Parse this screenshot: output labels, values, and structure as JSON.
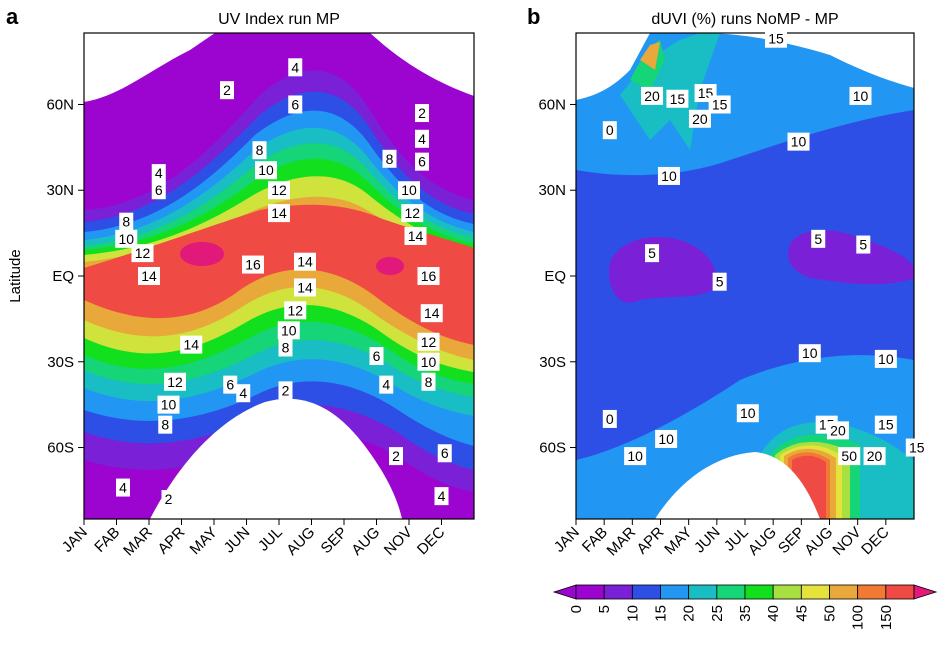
{
  "chart_data": [
    {
      "panel": "a",
      "type": "heatmap",
      "title": "UV Index run MP",
      "ylabel": "Latitude",
      "xlabel": "",
      "x_ticks": [
        "JAN",
        "FAB",
        "MAR",
        "APR",
        "MAY",
        "JUN",
        "JUL",
        "AUG",
        "SEP",
        "AUG",
        "NOV",
        "DEC"
      ],
      "y_ticks": [
        "60N",
        "30N",
        "EQ",
        "30S",
        "60S"
      ],
      "y_tick_values": [
        60,
        30,
        0,
        -30,
        -60
      ],
      "ylim": [
        -85,
        85
      ],
      "levels": [
        0,
        2,
        4,
        6,
        8,
        10,
        12,
        14,
        16,
        18
      ],
      "colors": [
        "#9b05cf",
        "#7a20d6",
        "#2e4fe6",
        "#2196f3",
        "#19bdc4",
        "#16d478",
        "#12e01e",
        "#cfe33c",
        "#e8a93a",
        "#f04a44"
      ],
      "contour_labels": [
        {
          "text": "2",
          "month": 4.4,
          "lat": 65
        },
        {
          "text": "4",
          "month": 6.5,
          "lat": 73
        },
        {
          "text": "6",
          "month": 6.5,
          "lat": 60
        },
        {
          "text": "2",
          "month": 10.4,
          "lat": 57
        },
        {
          "text": "4",
          "month": 10.4,
          "lat": 48
        },
        {
          "text": "6",
          "month": 10.4,
          "lat": 40
        },
        {
          "text": "8",
          "month": 9.4,
          "lat": 41
        },
        {
          "text": "8",
          "month": 5.4,
          "lat": 44
        },
        {
          "text": "10",
          "month": 5.6,
          "lat": 37
        },
        {
          "text": "12",
          "month": 6.0,
          "lat": 30
        },
        {
          "text": "14",
          "month": 6.0,
          "lat": 22
        },
        {
          "text": "10",
          "month": 10.0,
          "lat": 30
        },
        {
          "text": "12",
          "month": 10.1,
          "lat": 22
        },
        {
          "text": "14",
          "month": 10.2,
          "lat": 14
        },
        {
          "text": "4",
          "month": 2.3,
          "lat": 36
        },
        {
          "text": "6",
          "month": 2.3,
          "lat": 30
        },
        {
          "text": "8",
          "month": 1.3,
          "lat": 19
        },
        {
          "text": "10",
          "month": 1.3,
          "lat": 13
        },
        {
          "text": "12",
          "month": 1.8,
          "lat": 8
        },
        {
          "text": "14",
          "month": 2.0,
          "lat": 0
        },
        {
          "text": "16",
          "month": 5.2,
          "lat": 4
        },
        {
          "text": "14",
          "month": 6.8,
          "lat": 5
        },
        {
          "text": "16",
          "month": 10.6,
          "lat": 0
        },
        {
          "text": "14",
          "month": 6.8,
          "lat": -4
        },
        {
          "text": "12",
          "month": 6.5,
          "lat": -12
        },
        {
          "text": "10",
          "month": 6.3,
          "lat": -19
        },
        {
          "text": "8",
          "month": 6.2,
          "lat": -25
        },
        {
          "text": "14",
          "month": 10.7,
          "lat": -13
        },
        {
          "text": "12",
          "month": 10.6,
          "lat": -23
        },
        {
          "text": "10",
          "month": 10.6,
          "lat": -30
        },
        {
          "text": "8",
          "month": 10.6,
          "lat": -37
        },
        {
          "text": "6",
          "month": 9.0,
          "lat": -28
        },
        {
          "text": "4",
          "month": 9.3,
          "lat": -38
        },
        {
          "text": "14",
          "month": 3.3,
          "lat": -24
        },
        {
          "text": "12",
          "month": 2.8,
          "lat": -37
        },
        {
          "text": "10",
          "month": 2.6,
          "lat": -45
        },
        {
          "text": "8",
          "month": 2.5,
          "lat": -52
        },
        {
          "text": "6",
          "month": 4.5,
          "lat": -38
        },
        {
          "text": "4",
          "month": 4.9,
          "lat": -41
        },
        {
          "text": "2",
          "month": 6.2,
          "lat": -40
        },
        {
          "text": "2",
          "month": 9.6,
          "lat": -63
        },
        {
          "text": "6",
          "month": 11.1,
          "lat": -62
        },
        {
          "text": "4",
          "month": 1.2,
          "lat": -74
        },
        {
          "text": "2",
          "month": 2.6,
          "lat": -78
        },
        {
          "text": "4",
          "month": 11.0,
          "lat": -77
        }
      ]
    },
    {
      "panel": "b",
      "type": "heatmap",
      "title": "dUVI (%) runs NoMP - MP",
      "ylabel": "",
      "xlabel": "",
      "x_ticks": [
        "JAN",
        "FAB",
        "MAR",
        "APR",
        "MAY",
        "JUN",
        "JUL",
        "AUG",
        "SEP",
        "AUG",
        "NOV",
        "DEC"
      ],
      "y_ticks": [
        "60N",
        "30N",
        "EQ",
        "30S",
        "60S"
      ],
      "y_tick_values": [
        60,
        30,
        0,
        -30,
        -60
      ],
      "ylim": [
        -85,
        85
      ],
      "levels": [
        0,
        5,
        10,
        15,
        20,
        25,
        35,
        40,
        45,
        50,
        100,
        150
      ],
      "colorbar_labels": [
        "0",
        "5",
        "10",
        "15",
        "20",
        "25",
        "35",
        "40",
        "45",
        "50",
        "100",
        "150"
      ],
      "colors": [
        "#9b05cf",
        "#7a20d6",
        "#2e4fe6",
        "#2196f3",
        "#19bdc4",
        "#16d478",
        "#12e01e",
        "#a8e040",
        "#e6e23c",
        "#e8a93a",
        "#f07a34",
        "#f04a44"
      ],
      "contour_labels": [
        {
          "text": "15",
          "month": 7.1,
          "lat": 83
        },
        {
          "text": "20",
          "month": 2.7,
          "lat": 63
        },
        {
          "text": "15",
          "month": 3.6,
          "lat": 62
        },
        {
          "text": "15",
          "month": 4.6,
          "lat": 64
        },
        {
          "text": "15",
          "month": 5.1,
          "lat": 60
        },
        {
          "text": "20",
          "month": 4.4,
          "lat": 55
        },
        {
          "text": "10",
          "month": 10.1,
          "lat": 63
        },
        {
          "text": "0",
          "month": 1.2,
          "lat": 51
        },
        {
          "text": "10",
          "month": 7.9,
          "lat": 47
        },
        {
          "text": "10",
          "month": 3.3,
          "lat": 35
        },
        {
          "text": "5",
          "month": 2.7,
          "lat": 8
        },
        {
          "text": "5",
          "month": 5.1,
          "lat": -2
        },
        {
          "text": "5",
          "month": 8.6,
          "lat": 13
        },
        {
          "text": "5",
          "month": 10.2,
          "lat": 11
        },
        {
          "text": "10",
          "month": 8.3,
          "lat": -27
        },
        {
          "text": "10",
          "month": 11.0,
          "lat": -29
        },
        {
          "text": "0",
          "month": 1.2,
          "lat": -50
        },
        {
          "text": "10",
          "month": 6.1,
          "lat": -48
        },
        {
          "text": "10",
          "month": 3.2,
          "lat": -57
        },
        {
          "text": "10",
          "month": 2.1,
          "lat": -63
        },
        {
          "text": "15",
          "month": 8.9,
          "lat": -52
        },
        {
          "text": "20",
          "month": 9.3,
          "lat": -54
        },
        {
          "text": "15",
          "month": 11.0,
          "lat": -52
        },
        {
          "text": "50",
          "month": 9.7,
          "lat": -63
        },
        {
          "text": "20",
          "month": 10.6,
          "lat": -63
        },
        {
          "text": "15",
          "month": 12.1,
          "lat": -60
        }
      ]
    }
  ]
}
